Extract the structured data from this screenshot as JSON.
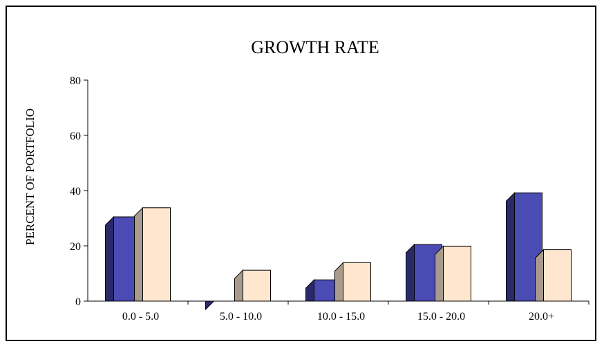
{
  "chart_data": {
    "type": "bar",
    "title": "GROWTH RATE",
    "xlabel": "",
    "ylabel": "PERCENT OF PORTFOLIO",
    "ylim": [
      0,
      80
    ],
    "yticks": [
      0,
      20,
      40,
      60,
      80
    ],
    "categories": [
      "0.0 - 5.0",
      "5.0 - 10.0",
      "10.0 - 15.0",
      "15.0 - 20.0",
      "20.0+"
    ],
    "series": [
      {
        "values": [
          30.5,
          0,
          7.7,
          20.5,
          39.2
        ]
      },
      {
        "values": [
          33.8,
          11.2,
          13.9,
          19.9,
          18.6
        ]
      }
    ],
    "colors": {
      "series1_front": "#4b4bb4",
      "series1_side": "#2a2a6a",
      "series2_front": "#ffe6cf",
      "series2_side": "#a89a8c"
    },
    "legend": "none",
    "grid": false
  }
}
